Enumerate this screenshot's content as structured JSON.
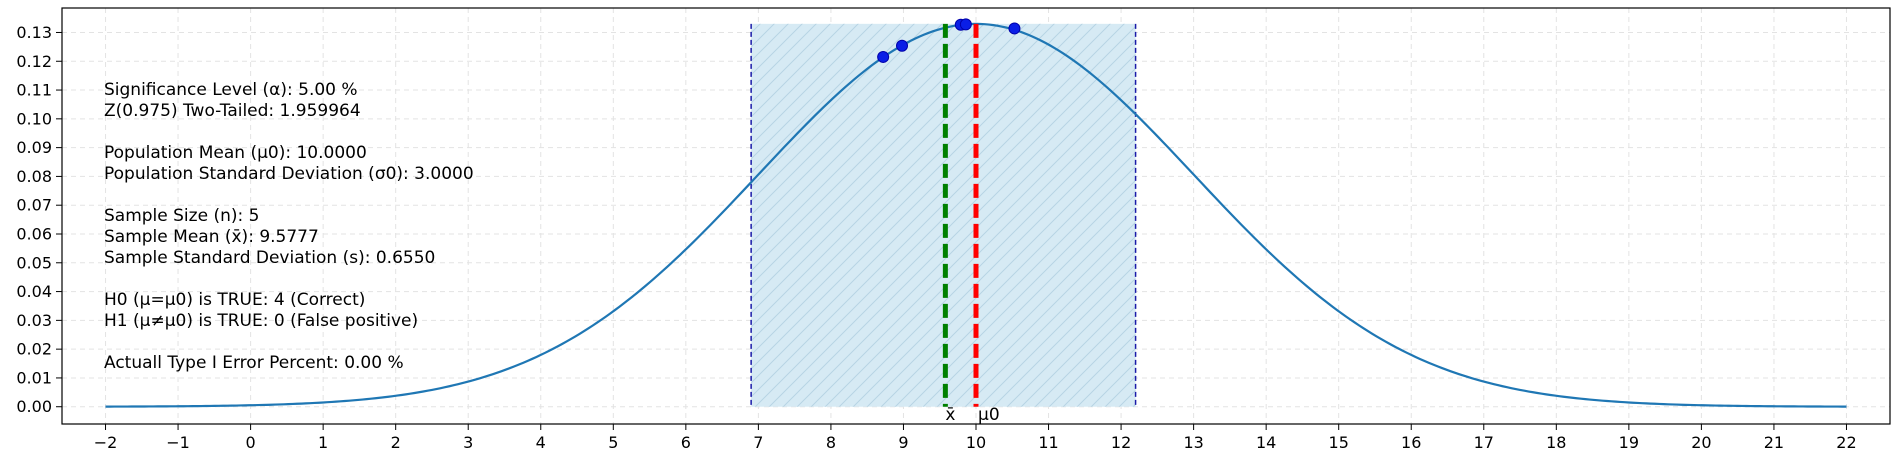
{
  "chart_data": {
    "type": "line",
    "xlim": [
      -2.6,
      22.6
    ],
    "ylim": [
      -0.006,
      0.1385
    ],
    "x_ticks": [
      -2,
      -1,
      0,
      1,
      2,
      3,
      4,
      5,
      6,
      7,
      8,
      9,
      10,
      11,
      12,
      13,
      14,
      15,
      16,
      17,
      18,
      19,
      20,
      21,
      22
    ],
    "y_ticks": [
      0.0,
      0.01,
      0.02,
      0.03,
      0.04,
      0.05,
      0.06,
      0.07,
      0.08,
      0.09,
      0.1,
      0.11,
      0.12,
      0.13
    ],
    "grid": true,
    "curve": {
      "distribution": "normal",
      "mean": 10.0,
      "std": 3.0,
      "x_range": [
        -2,
        22
      ],
      "color": "#1f77b4"
    },
    "acceptance_region": {
      "x_low": 6.9,
      "x_high": 12.2,
      "y_top": 0.133,
      "fill": "#d6eaf4",
      "edge": "#1a1aa8"
    },
    "sample_points": [
      {
        "x": 8.72,
        "y": 0.1215
      },
      {
        "x": 8.98,
        "y": 0.1254
      },
      {
        "x": 9.79,
        "y": 0.1327
      },
      {
        "x": 9.86,
        "y": 0.1328
      },
      {
        "x": 10.53,
        "y": 0.1314
      }
    ],
    "point_color": "#0a1ee6",
    "sample_mean_line": {
      "x": 9.5777,
      "label": "x̄",
      "color": "#008000"
    },
    "population_mean_line": {
      "x": 10.0,
      "label": "μ0",
      "color": "#ff0000"
    },
    "info_lines": [
      "Significance Level (α): 5.00 %",
      "Z(0.975) Two-Tailed: 1.959964",
      "",
      "Population Mean (μ0): 10.0000",
      "Population Standard Deviation (σ0): 3.0000",
      "",
      "Sample Size (n): 5",
      "Sample Mean (x̄): 9.5777",
      "Sample Standard Deviation (s): 0.6550",
      "",
      "H0 (μ=μ0) is TRUE: 4 (Correct)",
      "H1 (μ≠μ0) is TRUE: 0 (False positive)",
      "",
      "Actuall Type I Error Percent: 0.00 %"
    ]
  }
}
